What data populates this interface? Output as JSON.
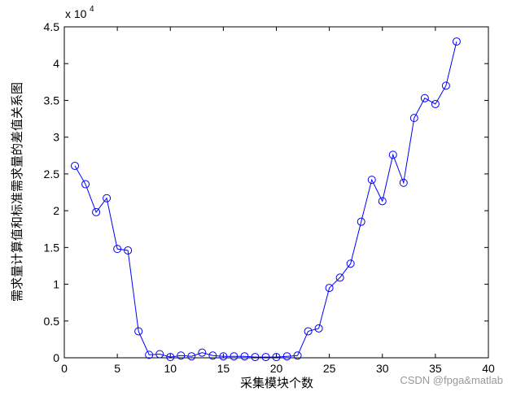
{
  "chart_data": {
    "type": "line",
    "y_axis_multiplier": "x 10",
    "y_axis_multiplier_exponent": "4",
    "ylabel": "需求量计算值和标准需求量的差值关系图",
    "xlabel": "采集模块个数",
    "watermark": "CSDN @fpga&matlab",
    "x": [
      1,
      2,
      3,
      4,
      5,
      6,
      7,
      8,
      9,
      10,
      11,
      12,
      13,
      14,
      15,
      16,
      17,
      18,
      19,
      20,
      21,
      22,
      23,
      24,
      25,
      26,
      27,
      28,
      29,
      30,
      31,
      32,
      33,
      34,
      35,
      36,
      37
    ],
    "series": [
      {
        "color": "#0000ff",
        "marker": "circle",
        "values": [
          2.61,
          2.36,
          1.98,
          2.17,
          1.48,
          1.46,
          0.36,
          0.04,
          0.05,
          0.01,
          0.03,
          0.02,
          0.07,
          0.03,
          0.02,
          0.02,
          0.02,
          0.01,
          0.01,
          0.01,
          0.02,
          0.03,
          0.36,
          0.4,
          0.95,
          1.09,
          1.28,
          1.85,
          2.42,
          2.13,
          2.76,
          2.38,
          3.26,
          3.53,
          3.45,
          3.7,
          4.3
        ]
      }
    ],
    "xlim": [
      0,
      40
    ],
    "xticks": [
      0,
      5,
      10,
      15,
      20,
      25,
      30,
      35,
      40
    ],
    "ylim": [
      0,
      4.5
    ],
    "yticks": [
      0,
      0.5,
      1,
      1.5,
      2,
      2.5,
      3,
      3.5,
      4,
      4.5
    ],
    "grid": false
  }
}
